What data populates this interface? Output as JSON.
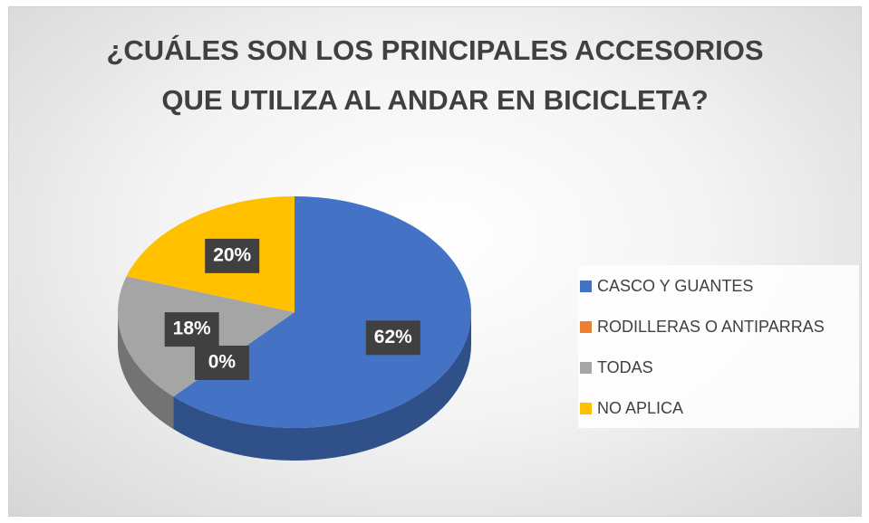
{
  "chart_data": {
    "type": "pie3d",
    "title": "¿CUÁLES SON LOS PRINCIPALES ACCESORIOS QUE UTILIZA AL ANDAR EN BICICLETA?",
    "categories": [
      "CASCO Y GUANTES",
      "RODILLERAS O ANTIPARRAS",
      "TODAS",
      "NO APLICA"
    ],
    "values": [
      62,
      0,
      18,
      20
    ],
    "value_labels": [
      "62%",
      "0%",
      "18%",
      "20%"
    ],
    "colors": [
      "#4472c4",
      "#ed7d31",
      "#a5a5a5",
      "#ffc000"
    ],
    "legend": "right"
  }
}
